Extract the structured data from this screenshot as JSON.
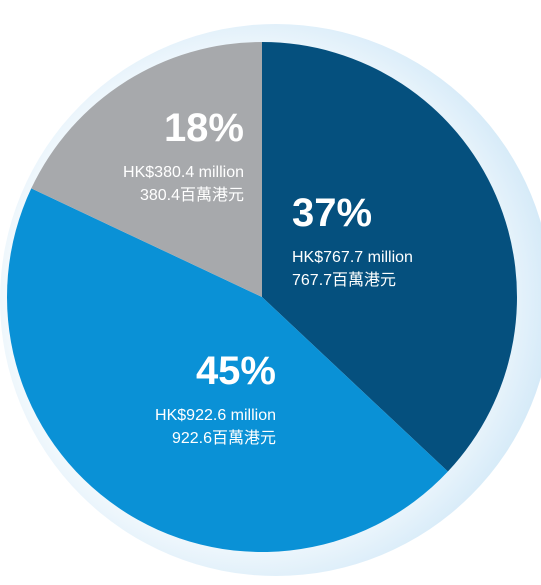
{
  "chart_data": {
    "type": "pie",
    "values": [
      37,
      45,
      18
    ],
    "value_labels": [
      "37%",
      "45%",
      "18%"
    ],
    "amount_labels": [
      "HK$767.7 million",
      "HK$922.6 million",
      "HK$380.4 million"
    ],
    "amount_labels_zh": [
      "767.7百萬港元",
      "922.6百萬港元",
      "380.4百萬港元"
    ],
    "colors": [
      "#05507e",
      "#0a91d6",
      "#a7a9ac"
    ]
  }
}
